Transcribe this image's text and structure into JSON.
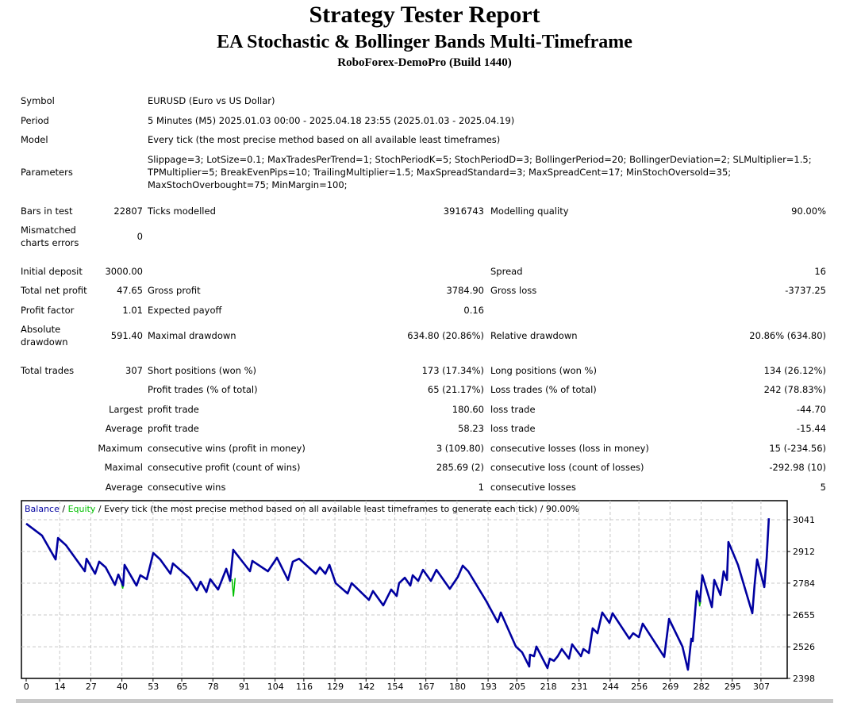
{
  "header": {
    "title": "Strategy Tester Report",
    "subtitle": "EA Stochastic & Bollinger Bands Multi-Timeframe",
    "server": "RoboForex-DemoPro (Build 1440)"
  },
  "info": {
    "symbol_label": "Symbol",
    "symbol": "EURUSD (Euro vs US Dollar)",
    "period_label": "Period",
    "period": "5 Minutes (M5) 2025.01.03 00:00 - 2025.04.18 23:55 (2025.01.03 - 2025.04.19)",
    "model_label": "Model",
    "model": "Every tick (the most precise method based on all available least timeframes)",
    "parameters_label": "Parameters",
    "parameters_line1": "Slippage=3; LotSize=0.1; MaxTradesPerTrend=1; StochPeriodK=5; StochPeriodD=3; BollingerPeriod=20; BollingerDeviation=2; SLMultiplier=1.5;",
    "parameters_line2": "TPMultiplier=5; BreakEvenPips=10; TrailingMultiplier=1.5; MaxSpreadStandard=3; MaxSpreadCent=17; MinStochOversold=35;",
    "parameters_line3": "MaxStochOverbought=75; MinMargin=100;"
  },
  "stats": {
    "bars_label": "Bars in test",
    "bars": "22807",
    "ticks_label": "Ticks modelled",
    "ticks": "3916743",
    "quality_label": "Modelling quality",
    "quality": "90.00%",
    "mismatch_label1": "Mismatched",
    "mismatch_label2": "charts errors",
    "mismatch": "0",
    "deposit_label": "Initial deposit",
    "deposit": "3000.00",
    "spread_label": "Spread",
    "spread": "16",
    "net_label": "Total net profit",
    "net": "47.65",
    "gross_profit_label": "Gross profit",
    "gross_profit": "3784.90",
    "gross_loss_label": "Gross loss",
    "gross_loss": "-3737.25",
    "pf_label": "Profit factor",
    "pf": "1.01",
    "payoff_label": "Expected payoff",
    "payoff": "0.16",
    "abs_dd_label1": "Absolute",
    "abs_dd_label2": "drawdown",
    "abs_dd": "591.40",
    "max_dd_label": "Maximal drawdown",
    "max_dd": "634.80 (20.86%)",
    "rel_dd_label": "Relative drawdown",
    "rel_dd": "20.86% (634.80)",
    "trades_label": "Total trades",
    "trades": "307",
    "short_label": "Short positions (won %)",
    "short": "173 (17.34%)",
    "long_label": "Long positions (won %)",
    "long": "134 (26.12%)",
    "profit_trades_label": "Profit trades (% of total)",
    "profit_trades": "65 (21.17%)",
    "loss_trades_label": "Loss trades (% of total)",
    "loss_trades": "242 (78.83%)",
    "largest_label": "Largest",
    "largest_profit_label": "profit trade",
    "largest_profit": "180.60",
    "largest_loss_label": "loss trade",
    "largest_loss": "-44.70",
    "average_label": "Average",
    "avg_profit_label": "profit trade",
    "avg_profit": "58.23",
    "avg_loss_label": "loss trade",
    "avg_loss": "-15.44",
    "maximum_label": "Maximum",
    "max_wins_label": "consecutive wins (profit in money)",
    "max_wins": "3 (109.80)",
    "max_losses_label": "consecutive losses (loss in money)",
    "max_losses": "15 (-234.56)",
    "maximal_label": "Maximal",
    "maximal_profit_label": "consecutive profit (count of wins)",
    "maximal_profit": "285.69 (2)",
    "maximal_loss_label": "consecutive loss (count of losses)",
    "maximal_loss": "-292.98 (10)",
    "average2_label": "Average",
    "avg_wins_label": "consecutive wins",
    "avg_wins": "1",
    "avg_losses_label": "consecutive losses",
    "avg_losses": "5"
  },
  "chart_data": {
    "type": "line",
    "legend_balance": "Balance",
    "legend_sep1": " / ",
    "legend_equity": "Equity",
    "legend_rest": " / Every tick (the most precise method based on all available least timeframes to generate each tick) / 90.00%",
    "colors": {
      "balance": "#0000a0",
      "equity": "#00c000",
      "grid": "#c8c8c8"
    },
    "grid": true,
    "ylim": [
      2398,
      3041
    ],
    "y_ticks": [
      "3041",
      "2912",
      "2784",
      "2655",
      "2526",
      "2398"
    ],
    "x_ticks": [
      "0",
      "14",
      "27",
      "40",
      "53",
      "65",
      "78",
      "91",
      "104",
      "116",
      "129",
      "142",
      "154",
      "167",
      "180",
      "193",
      "205",
      "218",
      "231",
      "244",
      "256",
      "269",
      "282",
      "295",
      "307"
    ],
    "balance": [
      [
        0,
        3025
      ],
      [
        6.6,
        2977
      ],
      [
        12.3,
        2880
      ],
      [
        13.3,
        2967
      ],
      [
        16.6,
        2938
      ],
      [
        24.5,
        2832
      ],
      [
        25.2,
        2883
      ],
      [
        28.8,
        2822
      ],
      [
        30.5,
        2871
      ],
      [
        33.2,
        2848
      ],
      [
        37.1,
        2777
      ],
      [
        38.5,
        2819
      ],
      [
        40.5,
        2774
      ],
      [
        41.1,
        2858
      ],
      [
        46.1,
        2774
      ],
      [
        47.7,
        2816
      ],
      [
        50.4,
        2800
      ],
      [
        53.1,
        2906
      ],
      [
        56,
        2880
      ],
      [
        60.3,
        2822
      ],
      [
        61.3,
        2864
      ],
      [
        68,
        2806
      ],
      [
        71.3,
        2755
      ],
      [
        72.9,
        2790
      ],
      [
        75.3,
        2748
      ],
      [
        76.9,
        2800
      ],
      [
        80.2,
        2758
      ],
      [
        83.6,
        2842
      ],
      [
        85.2,
        2793
      ],
      [
        86.5,
        2919
      ],
      [
        93.5,
        2832
      ],
      [
        94.5,
        2874
      ],
      [
        101,
        2832
      ],
      [
        104.8,
        2887
      ],
      [
        109.4,
        2797
      ],
      [
        111.4,
        2871
      ],
      [
        114,
        2883
      ],
      [
        121,
        2822
      ],
      [
        122.7,
        2848
      ],
      [
        125,
        2822
      ],
      [
        126.7,
        2858
      ],
      [
        129.3,
        2784
      ],
      [
        134.3,
        2742
      ],
      [
        136,
        2784
      ],
      [
        143.2,
        2716
      ],
      [
        144.9,
        2752
      ],
      [
        149.2,
        2694
      ],
      [
        152.5,
        2758
      ],
      [
        154.8,
        2732
      ],
      [
        155.8,
        2784
      ],
      [
        158.2,
        2806
      ],
      [
        160.5,
        2774
      ],
      [
        161.5,
        2816
      ],
      [
        163.8,
        2793
      ],
      [
        165.8,
        2838
      ],
      [
        169.1,
        2793
      ],
      [
        171.4,
        2838
      ],
      [
        177,
        2761
      ],
      [
        180.4,
        2810
      ],
      [
        182.4,
        2855
      ],
      [
        184.7,
        2832
      ],
      [
        192.3,
        2710
      ],
      [
        197,
        2626
      ],
      [
        198.3,
        2665
      ],
      [
        204.6,
        2527
      ],
      [
        207.2,
        2504
      ],
      [
        210.2,
        2446
      ],
      [
        210.5,
        2494
      ],
      [
        212.2,
        2488
      ],
      [
        213.2,
        2527
      ],
      [
        217.8,
        2440
      ],
      [
        218.8,
        2478
      ],
      [
        220.5,
        2469
      ],
      [
        222.1,
        2488
      ],
      [
        223.8,
        2517
      ],
      [
        226.8,
        2478
      ],
      [
        228.1,
        2536
      ],
      [
        231.8,
        2488
      ],
      [
        232.8,
        2517
      ],
      [
        235.1,
        2501
      ],
      [
        236.7,
        2601
      ],
      [
        238.7,
        2581
      ],
      [
        240.7,
        2665
      ],
      [
        243.7,
        2623
      ],
      [
        245,
        2662
      ],
      [
        252,
        2559
      ],
      [
        253.6,
        2581
      ],
      [
        256,
        2565
      ],
      [
        257.6,
        2620
      ],
      [
        266.6,
        2485
      ],
      [
        268.6,
        2639
      ],
      [
        274.2,
        2527
      ],
      [
        276.5,
        2433
      ],
      [
        277.9,
        2559
      ],
      [
        278.5,
        2549
      ],
      [
        280.2,
        2752
      ],
      [
        281.5,
        2710
      ],
      [
        282.5,
        2816
      ],
      [
        286.5,
        2687
      ],
      [
        287.5,
        2797
      ],
      [
        290.1,
        2736
      ],
      [
        291.4,
        2832
      ],
      [
        292.8,
        2797
      ],
      [
        293.4,
        2951
      ],
      [
        297.4,
        2858
      ],
      [
        303.4,
        2662
      ],
      [
        304.4,
        2784
      ],
      [
        305.4,
        2880
      ],
      [
        308.4,
        2768
      ],
      [
        309.4,
        2887
      ],
      [
        310.3,
        3047
      ]
    ],
    "equity_dips": [
      [
        [
          39.8,
          2785
        ],
        [
          40.3,
          2762
        ],
        [
          40.7,
          2780
        ]
      ],
      [
        [
          86.0,
          2800
        ],
        [
          86.6,
          2730
        ],
        [
          87.3,
          2805
        ]
      ],
      [
        [
          281.0,
          2725
        ],
        [
          281.4,
          2690
        ],
        [
          281.8,
          2715
        ]
      ]
    ]
  }
}
